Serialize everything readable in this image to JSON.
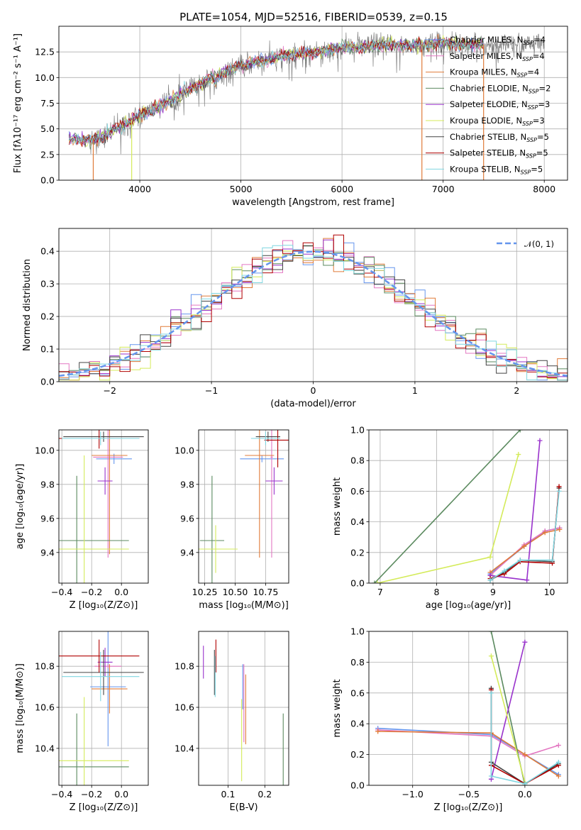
{
  "figure": {
    "title": "PLATE=1054, MJD=52516, FIBERID=0539, z=0.15"
  },
  "colors": {
    "Chabrier MILES": "#6495ed",
    "Salpeter MILES": "#e377c2",
    "Kroupa MILES": "#e07b39",
    "Chabrier ELODIE": "#5b8a5f",
    "Salpeter ELODIE": "#9932cc",
    "Kroupa ELODIE": "#d4eb5a",
    "Chabrier STELIB": "#444444",
    "Salpeter STELIB": "#b00000",
    "Kroupa STELIB": "#7fd6e0",
    "data": "#808080",
    "gaussian": "#6495ed"
  },
  "legend_entries": [
    {
      "key": "Chabrier MILES",
      "pre": "Chabrier MILES, N",
      "sub": "SSP",
      "post": "=4"
    },
    {
      "key": "Salpeter MILES",
      "pre": "Salpeter MILES, N",
      "sub": "SSP",
      "post": "=4"
    },
    {
      "key": "Kroupa MILES",
      "pre": "Kroupa MILES, N",
      "sub": "SSP",
      "post": "=4"
    },
    {
      "key": "Chabrier ELODIE",
      "pre": "Chabrier ELODIE, N",
      "sub": "SSP",
      "post": "=2"
    },
    {
      "key": "Salpeter ELODIE",
      "pre": "Salpeter ELODIE, N",
      "sub": "SSP",
      "post": "=3"
    },
    {
      "key": "Kroupa ELODIE",
      "pre": "Kroupa ELODIE, N",
      "sub": "SSP",
      "post": "=3"
    },
    {
      "key": "Chabrier STELIB",
      "pre": "Chabrier STELIB, N",
      "sub": "SSP",
      "post": "=5"
    },
    {
      "key": "Salpeter STELIB",
      "pre": "Salpeter STELIB, N",
      "sub": "SSP",
      "post": "=5"
    },
    {
      "key": "Kroupa STELIB",
      "pre": "Kroupa STELIB, N",
      "sub": "SSP",
      "post": "=5"
    }
  ],
  "chart_data": [
    {
      "id": "spectrum",
      "type": "line",
      "xlabel": "wavelength [Angstrom, rest frame]",
      "ylabel": "Flux [fλ10⁻¹⁷ erg cm⁻² s⁻¹ A⁻¹]",
      "xlim": [
        3200,
        8230
      ],
      "ylim": [
        0,
        15
      ],
      "xticks": [
        "4000",
        "5000",
        "6000",
        "7000",
        "8000"
      ],
      "xtick_values": [
        4000,
        5000,
        6000,
        7000,
        8000
      ],
      "yticks": [
        "0.0",
        "2.5",
        "5.0",
        "7.5",
        "10.0",
        "12.5"
      ],
      "ytick_values": [
        0,
        2.5,
        5,
        7.5,
        10,
        12.5
      ],
      "continuum": [
        [
          3300,
          4.0
        ],
        [
          3500,
          3.9
        ],
        [
          3600,
          4.1
        ],
        [
          3800,
          5.2
        ],
        [
          4000,
          6.3
        ],
        [
          4200,
          7.2
        ],
        [
          4400,
          8.3
        ],
        [
          4600,
          9.4
        ],
        [
          4800,
          10.3
        ],
        [
          5000,
          11.2
        ],
        [
          5200,
          11.6
        ],
        [
          5400,
          12.1
        ],
        [
          5600,
          12.3
        ],
        [
          5800,
          12.6
        ],
        [
          6000,
          12.9
        ],
        [
          6200,
          13.0
        ],
        [
          6400,
          13.2
        ],
        [
          6600,
          13.1
        ],
        [
          6800,
          13.2
        ],
        [
          7000,
          13.4
        ],
        [
          7200,
          13.2
        ],
        [
          7300,
          13.3
        ],
        [
          7400,
          13.2
        ]
      ],
      "data_extends_to": 8000,
      "model_extends_to": 7400,
      "spikes": [
        {
          "x": 3540,
          "ymin": 0.0,
          "series": "Kroupa MILES"
        },
        {
          "x": 3920,
          "ymin": 0.0,
          "series": "Kroupa ELODIE"
        },
        {
          "x": 6790,
          "ymin": 0.0,
          "series": "Kroupa MILES"
        },
        {
          "x": 7400,
          "ymin": 0.0,
          "series": "Kroupa MILES"
        }
      ]
    },
    {
      "id": "residuals",
      "type": "step-histogram",
      "xlabel": "(data-model)/error",
      "ylabel": "Normed distribution",
      "xlim": [
        -2.5,
        2.5
      ],
      "ylim": [
        0,
        0.47
      ],
      "xticks": [
        "−2",
        "−1",
        "0",
        "1",
        "2"
      ],
      "xtick_values": [
        -2,
        -1,
        0,
        1,
        2
      ],
      "yticks": [
        "0.0",
        "0.1",
        "0.2",
        "0.3",
        "0.4"
      ],
      "ytick_values": [
        0,
        0.1,
        0.2,
        0.3,
        0.4
      ],
      "bin_width": 0.1,
      "legend": "𝒩(0, 1)",
      "reference_curve": "standard normal pdf"
    },
    {
      "id": "age-vs-Z",
      "type": "errorbar",
      "xlabel": "Z [log₁₀(Z/Z⊙)]",
      "ylabel": "age  [log₁₀(age/yr)]",
      "xlim": [
        -0.42,
        0.18
      ],
      "ylim": [
        9.22,
        10.12
      ],
      "xticks": [
        "−0.4",
        "−0.2",
        "0.0"
      ],
      "xtick_values": [
        -0.4,
        -0.2,
        0.0
      ],
      "yticks": [
        "9.4",
        "9.6",
        "9.8",
        "10.0"
      ],
      "ytick_values": [
        9.4,
        9.6,
        9.8,
        10.0
      ],
      "points": [
        {
          "series": "Chabrier MILES",
          "x": -0.05,
          "y": 9.95,
          "xerr": 0.12,
          "yerr": 0.03
        },
        {
          "series": "Salpeter MILES",
          "x": -0.09,
          "y": 9.96,
          "xerr": 0.1,
          "yerr": 0.59
        },
        {
          "series": "Kroupa MILES",
          "x": -0.08,
          "y": 9.97,
          "xerr": 0.12,
          "yerr": 0.58
        },
        {
          "series": "Chabrier ELODIE",
          "x": -0.3,
          "y": 9.47,
          "xerr": 0.35,
          "yerr": 0.38
        },
        {
          "series": "Salpeter ELODIE",
          "x": -0.11,
          "y": 9.82,
          "xerr": 0.05,
          "yerr": 0.08
        },
        {
          "series": "Kroupa ELODIE",
          "x": -0.25,
          "y": 9.42,
          "xerr": 0.3,
          "yerr": 0.55
        },
        {
          "series": "Chabrier STELIB",
          "x": -0.12,
          "y": 10.08,
          "xerr": 0.27,
          "yerr": 0.03
        },
        {
          "series": "Salpeter STELIB",
          "x": -0.15,
          "y": 10.07,
          "xerr": 0.27,
          "yerr": 0.06
        },
        {
          "series": "Kroupa STELIB",
          "x": -0.14,
          "y": 10.07,
          "xerr": 0.26,
          "yerr": 0.04
        }
      ]
    },
    {
      "id": "age-vs-mass",
      "type": "errorbar",
      "xlabel": "mass [log₁₀(M/M⊙)]",
      "ylabel": "",
      "xlim": [
        10.2,
        10.94
      ],
      "ylim": [
        9.22,
        10.12
      ],
      "xticks": [
        "10.25",
        "10.50",
        "10.75"
      ],
      "xtick_values": [
        10.25,
        10.5,
        10.75
      ],
      "yticks": [
        "9.4",
        "9.6",
        "9.8",
        "10.0"
      ],
      "ytick_values": [
        9.4,
        9.6,
        9.8,
        10.0
      ],
      "points": [
        {
          "series": "Chabrier MILES",
          "x": 10.72,
          "y": 9.95,
          "xerr": 0.18,
          "yerr": 0.02
        },
        {
          "series": "Salpeter MILES",
          "x": 10.8,
          "y": 9.96,
          "xerr": 0.01,
          "yerr": 0.59
        },
        {
          "series": "Kroupa MILES",
          "x": 10.7,
          "y": 9.97,
          "xerr": 0.12,
          "yerr": 0.6
        },
        {
          "series": "Chabrier ELODIE",
          "x": 10.31,
          "y": 9.47,
          "xerr": 0.1,
          "yerr": 0.38
        },
        {
          "series": "Salpeter ELODIE",
          "x": 10.82,
          "y": 9.82,
          "xerr": 0.07,
          "yerr": 0.08
        },
        {
          "series": "Kroupa ELODIE",
          "x": 10.34,
          "y": 9.42,
          "xerr": 0.18,
          "yerr": 0.14
        },
        {
          "series": "Chabrier STELIB",
          "x": 10.77,
          "y": 10.08,
          "xerr": 0.1,
          "yerr": 0.03
        },
        {
          "series": "Salpeter STELIB",
          "x": 10.85,
          "y": 10.06,
          "xerr": 0.11,
          "yerr": 0.16
        },
        {
          "series": "Kroupa STELIB",
          "x": 10.75,
          "y": 10.07,
          "xerr": 0.12,
          "yerr": 0.04
        }
      ]
    },
    {
      "id": "massweight-vs-age",
      "type": "line",
      "xlabel": "age  [log₁₀(age/yr)]",
      "ylabel": "mass weight",
      "xlim": [
        6.8,
        10.32
      ],
      "ylim": [
        0,
        1
      ],
      "xticks": [
        "7",
        "8",
        "9",
        "10"
      ],
      "xtick_values": [
        7,
        8,
        9,
        10
      ],
      "yticks": [
        "0.0",
        "0.2",
        "0.4",
        "0.6",
        "0.8",
        "1.0"
      ],
      "ytick_values": [
        0,
        0.2,
        0.4,
        0.6,
        0.8,
        1.0
      ],
      "series": [
        {
          "name": "Chabrier MILES",
          "x": [
            8.95,
            9.55,
            9.92,
            10.18
          ],
          "y": [
            0.06,
            0.24,
            0.34,
            0.36
          ]
        },
        {
          "name": "Salpeter MILES",
          "x": [
            8.95,
            9.55,
            9.92,
            10.18
          ],
          "y": [
            0.05,
            0.25,
            0.34,
            0.36
          ]
        },
        {
          "name": "Kroupa MILES",
          "x": [
            8.95,
            9.55,
            9.92,
            10.18
          ],
          "y": [
            0.07,
            0.24,
            0.33,
            0.35
          ]
        },
        {
          "name": "Chabrier ELODIE",
          "x": [
            6.9,
            9.48
          ],
          "y": [
            0.0,
            1.0
          ]
        },
        {
          "name": "Salpeter ELODIE",
          "x": [
            8.95,
            9.6,
            9.83
          ],
          "y": [
            0.05,
            0.02,
            0.93
          ]
        },
        {
          "name": "Kroupa ELODIE",
          "x": [
            6.95,
            8.95,
            9.45
          ],
          "y": [
            0.0,
            0.17,
            0.84
          ]
        },
        {
          "name": "Chabrier STELIB",
          "x": [
            8.95,
            9.2,
            9.48,
            10.05,
            10.17
          ],
          "y": [
            0.02,
            0.07,
            0.15,
            0.14,
            0.62
          ]
        },
        {
          "name": "Salpeter STELIB",
          "x": [
            8.95,
            9.2,
            9.48,
            10.05,
            10.17
          ],
          "y": [
            0.03,
            0.06,
            0.14,
            0.13,
            0.63
          ]
        },
        {
          "name": "Kroupa STELIB",
          "x": [
            8.95,
            9.2,
            9.48,
            10.05,
            10.17
          ],
          "y": [
            0.02,
            0.08,
            0.15,
            0.15,
            0.6
          ]
        }
      ]
    },
    {
      "id": "mass-vs-Z",
      "type": "errorbar",
      "xlabel": "Z [log₁₀(Z/Z⊙)]",
      "ylabel": "mass [log₁₀(M/M⊙)]",
      "xlim": [
        -0.42,
        0.18
      ],
      "ylim": [
        10.22,
        10.97
      ],
      "xticks": [
        "−0.4",
        "−0.2",
        "0.0"
      ],
      "xtick_values": [
        -0.4,
        -0.2,
        0.0
      ],
      "yticks": [
        "10.4",
        "10.6",
        "10.8"
      ],
      "ytick_values": [
        10.4,
        10.6,
        10.8
      ],
      "points": [
        {
          "series": "Chabrier MILES",
          "x": -0.09,
          "y": 10.7,
          "xerr": 0.12,
          "yerr": 0.29
        },
        {
          "series": "Salpeter MILES",
          "x": -0.09,
          "y": 10.8,
          "xerr": 0.09,
          "yerr": 0.01
        },
        {
          "series": "Kroupa MILES",
          "x": -0.08,
          "y": 10.69,
          "xerr": 0.12,
          "yerr": 0.12
        },
        {
          "series": "Chabrier ELODIE",
          "x": -0.3,
          "y": 10.31,
          "xerr": 0.35,
          "yerr": 0.26
        },
        {
          "series": "Salpeter ELODIE",
          "x": -0.11,
          "y": 10.82,
          "xerr": 0.05,
          "yerr": 0.07
        },
        {
          "series": "Kroupa ELODIE",
          "x": -0.25,
          "y": 10.34,
          "xerr": 0.3,
          "yerr": 0.31
        },
        {
          "series": "Chabrier STELIB",
          "x": -0.12,
          "y": 10.77,
          "xerr": 0.27,
          "yerr": 0.11
        },
        {
          "series": "Salpeter STELIB",
          "x": -0.15,
          "y": 10.85,
          "xerr": 0.27,
          "yerr": 0.08
        },
        {
          "series": "Kroupa STELIB",
          "x": -0.14,
          "y": 10.75,
          "xerr": 0.26,
          "yerr": 0.12
        }
      ]
    },
    {
      "id": "mass-vs-EBV",
      "type": "errorbar",
      "xlabel": "E(B-V)",
      "ylabel": "",
      "xlim": [
        0.02,
        0.265
      ],
      "ylim": [
        10.22,
        10.97
      ],
      "xticks": [
        "0.1",
        "0.2"
      ],
      "xtick_values": [
        0.1,
        0.2
      ],
      "yticks": [
        "10.4",
        "10.6",
        "10.8"
      ],
      "ytick_values": [
        10.4,
        10.6,
        10.8
      ],
      "points": [
        {
          "series": "Chabrier MILES",
          "x": 0.14,
          "y": 10.7,
          "xerr": 0,
          "yerr": 0.11
        },
        {
          "series": "Salpeter MILES",
          "x": 0.143,
          "y": 10.62,
          "xerr": 0,
          "yerr": 0.19
        },
        {
          "series": "Kroupa MILES",
          "x": 0.148,
          "y": 10.59,
          "xerr": 0,
          "yerr": 0.17
        },
        {
          "series": "Chabrier ELODIE",
          "x": 0.25,
          "y": 10.31,
          "xerr": 0,
          "yerr": 0.26
        },
        {
          "series": "Salpeter ELODIE",
          "x": 0.033,
          "y": 10.82,
          "xerr": 0,
          "yerr": 0.08
        },
        {
          "series": "Kroupa ELODIE",
          "x": 0.137,
          "y": 10.44,
          "xerr": 0,
          "yerr": 0.2
        },
        {
          "series": "Chabrier STELIB",
          "x": 0.063,
          "y": 10.77,
          "xerr": 0,
          "yerr": 0.11
        },
        {
          "series": "Salpeter STELIB",
          "x": 0.067,
          "y": 10.85,
          "xerr": 0,
          "yerr": 0.08
        },
        {
          "series": "Kroupa STELIB",
          "x": 0.065,
          "y": 10.75,
          "xerr": 0,
          "yerr": 0.1
        }
      ]
    },
    {
      "id": "massweight-vs-Z",
      "type": "line",
      "xlabel": "Z [log₁₀(Z/Z⊙)]",
      "ylabel": "mass weight",
      "xlim": [
        -1.39,
        0.38
      ],
      "ylim": [
        0,
        1
      ],
      "xticks": [
        "−1.0",
        "−0.5",
        "0.0"
      ],
      "xtick_values": [
        -1.0,
        -0.5,
        0.0
      ],
      "yticks": [
        "0.0",
        "0.2",
        "0.4",
        "0.6",
        "0.8",
        "1.0"
      ],
      "ytick_values": [
        0,
        0.2,
        0.4,
        0.6,
        0.8,
        1.0
      ],
      "series": [
        {
          "name": "Chabrier MILES",
          "x": [
            -1.31,
            -0.3,
            0.0,
            0.3
          ],
          "y": [
            0.37,
            0.33,
            0.2,
            0.07
          ]
        },
        {
          "name": "Salpeter MILES",
          "x": [
            -1.31,
            -0.3,
            0.0,
            0.3
          ],
          "y": [
            0.36,
            0.32,
            0.19,
            0.26
          ]
        },
        {
          "name": "Kroupa MILES",
          "x": [
            -1.31,
            -0.3,
            0.0,
            0.3
          ],
          "y": [
            0.35,
            0.34,
            0.2,
            0.06
          ]
        },
        {
          "name": "Chabrier ELODIE",
          "x": [
            -0.3,
            0.0
          ],
          "y": [
            1.0,
            0.0
          ]
        },
        {
          "name": "Salpeter ELODIE",
          "x": [
            -0.3,
            0.0
          ],
          "y": [
            0.04,
            0.93
          ]
        },
        {
          "name": "Kroupa ELODIE",
          "x": [
            -0.3,
            0.0
          ],
          "y": [
            0.84,
            0.02
          ]
        },
        {
          "name": "Chabrier STELIB",
          "x": [
            -0.3,
            -0.3,
            0.0,
            0.3
          ],
          "y": [
            0.63,
            0.15,
            0.01,
            0.14
          ]
        },
        {
          "name": "Salpeter STELIB",
          "x": [
            -0.3,
            -0.3,
            0.0,
            0.3
          ],
          "y": [
            0.62,
            0.13,
            0.01,
            0.13
          ]
        },
        {
          "name": "Kroupa STELIB",
          "x": [
            -0.3,
            -0.3,
            0.0,
            0.3
          ],
          "y": [
            0.6,
            0.06,
            0.01,
            0.15
          ]
        }
      ]
    }
  ]
}
